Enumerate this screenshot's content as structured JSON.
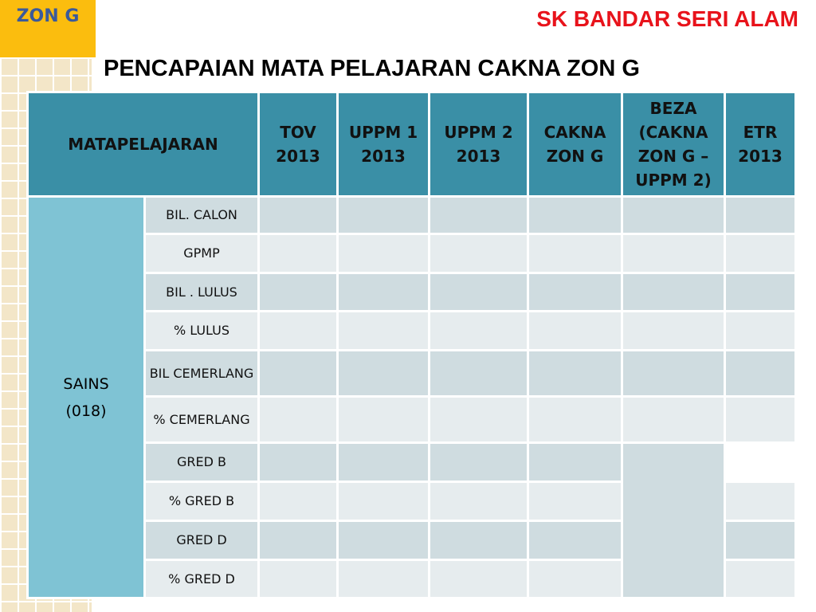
{
  "badge": "ZON G",
  "school": "SK BANDAR SERI ALAM",
  "title": "PENCAPAIAN  MATA PELAJARAN CAKNA ZON G",
  "table": {
    "headers": [
      "MATAPELAJARAN",
      "TOV 2013",
      "UPPM 1 2013",
      "UPPM 2 2013",
      "CAKNA ZON G",
      "BEZA (CAKNA ZON G – UPPM 2)",
      "ETR 2013"
    ],
    "subject": "SAINS",
    "subject_code": "(018)",
    "rows": [
      "BIL. CALON",
      "GPMP",
      "BIL . LULUS",
      "%  LULUS",
      "BIL CEMERLANG",
      "% CEMERLANG",
      "GRED B",
      "% GRED B",
      "GRED D",
      "% GRED D"
    ],
    "header_color": "#3a8fa6",
    "subject_color": "#7fc3d4"
  }
}
